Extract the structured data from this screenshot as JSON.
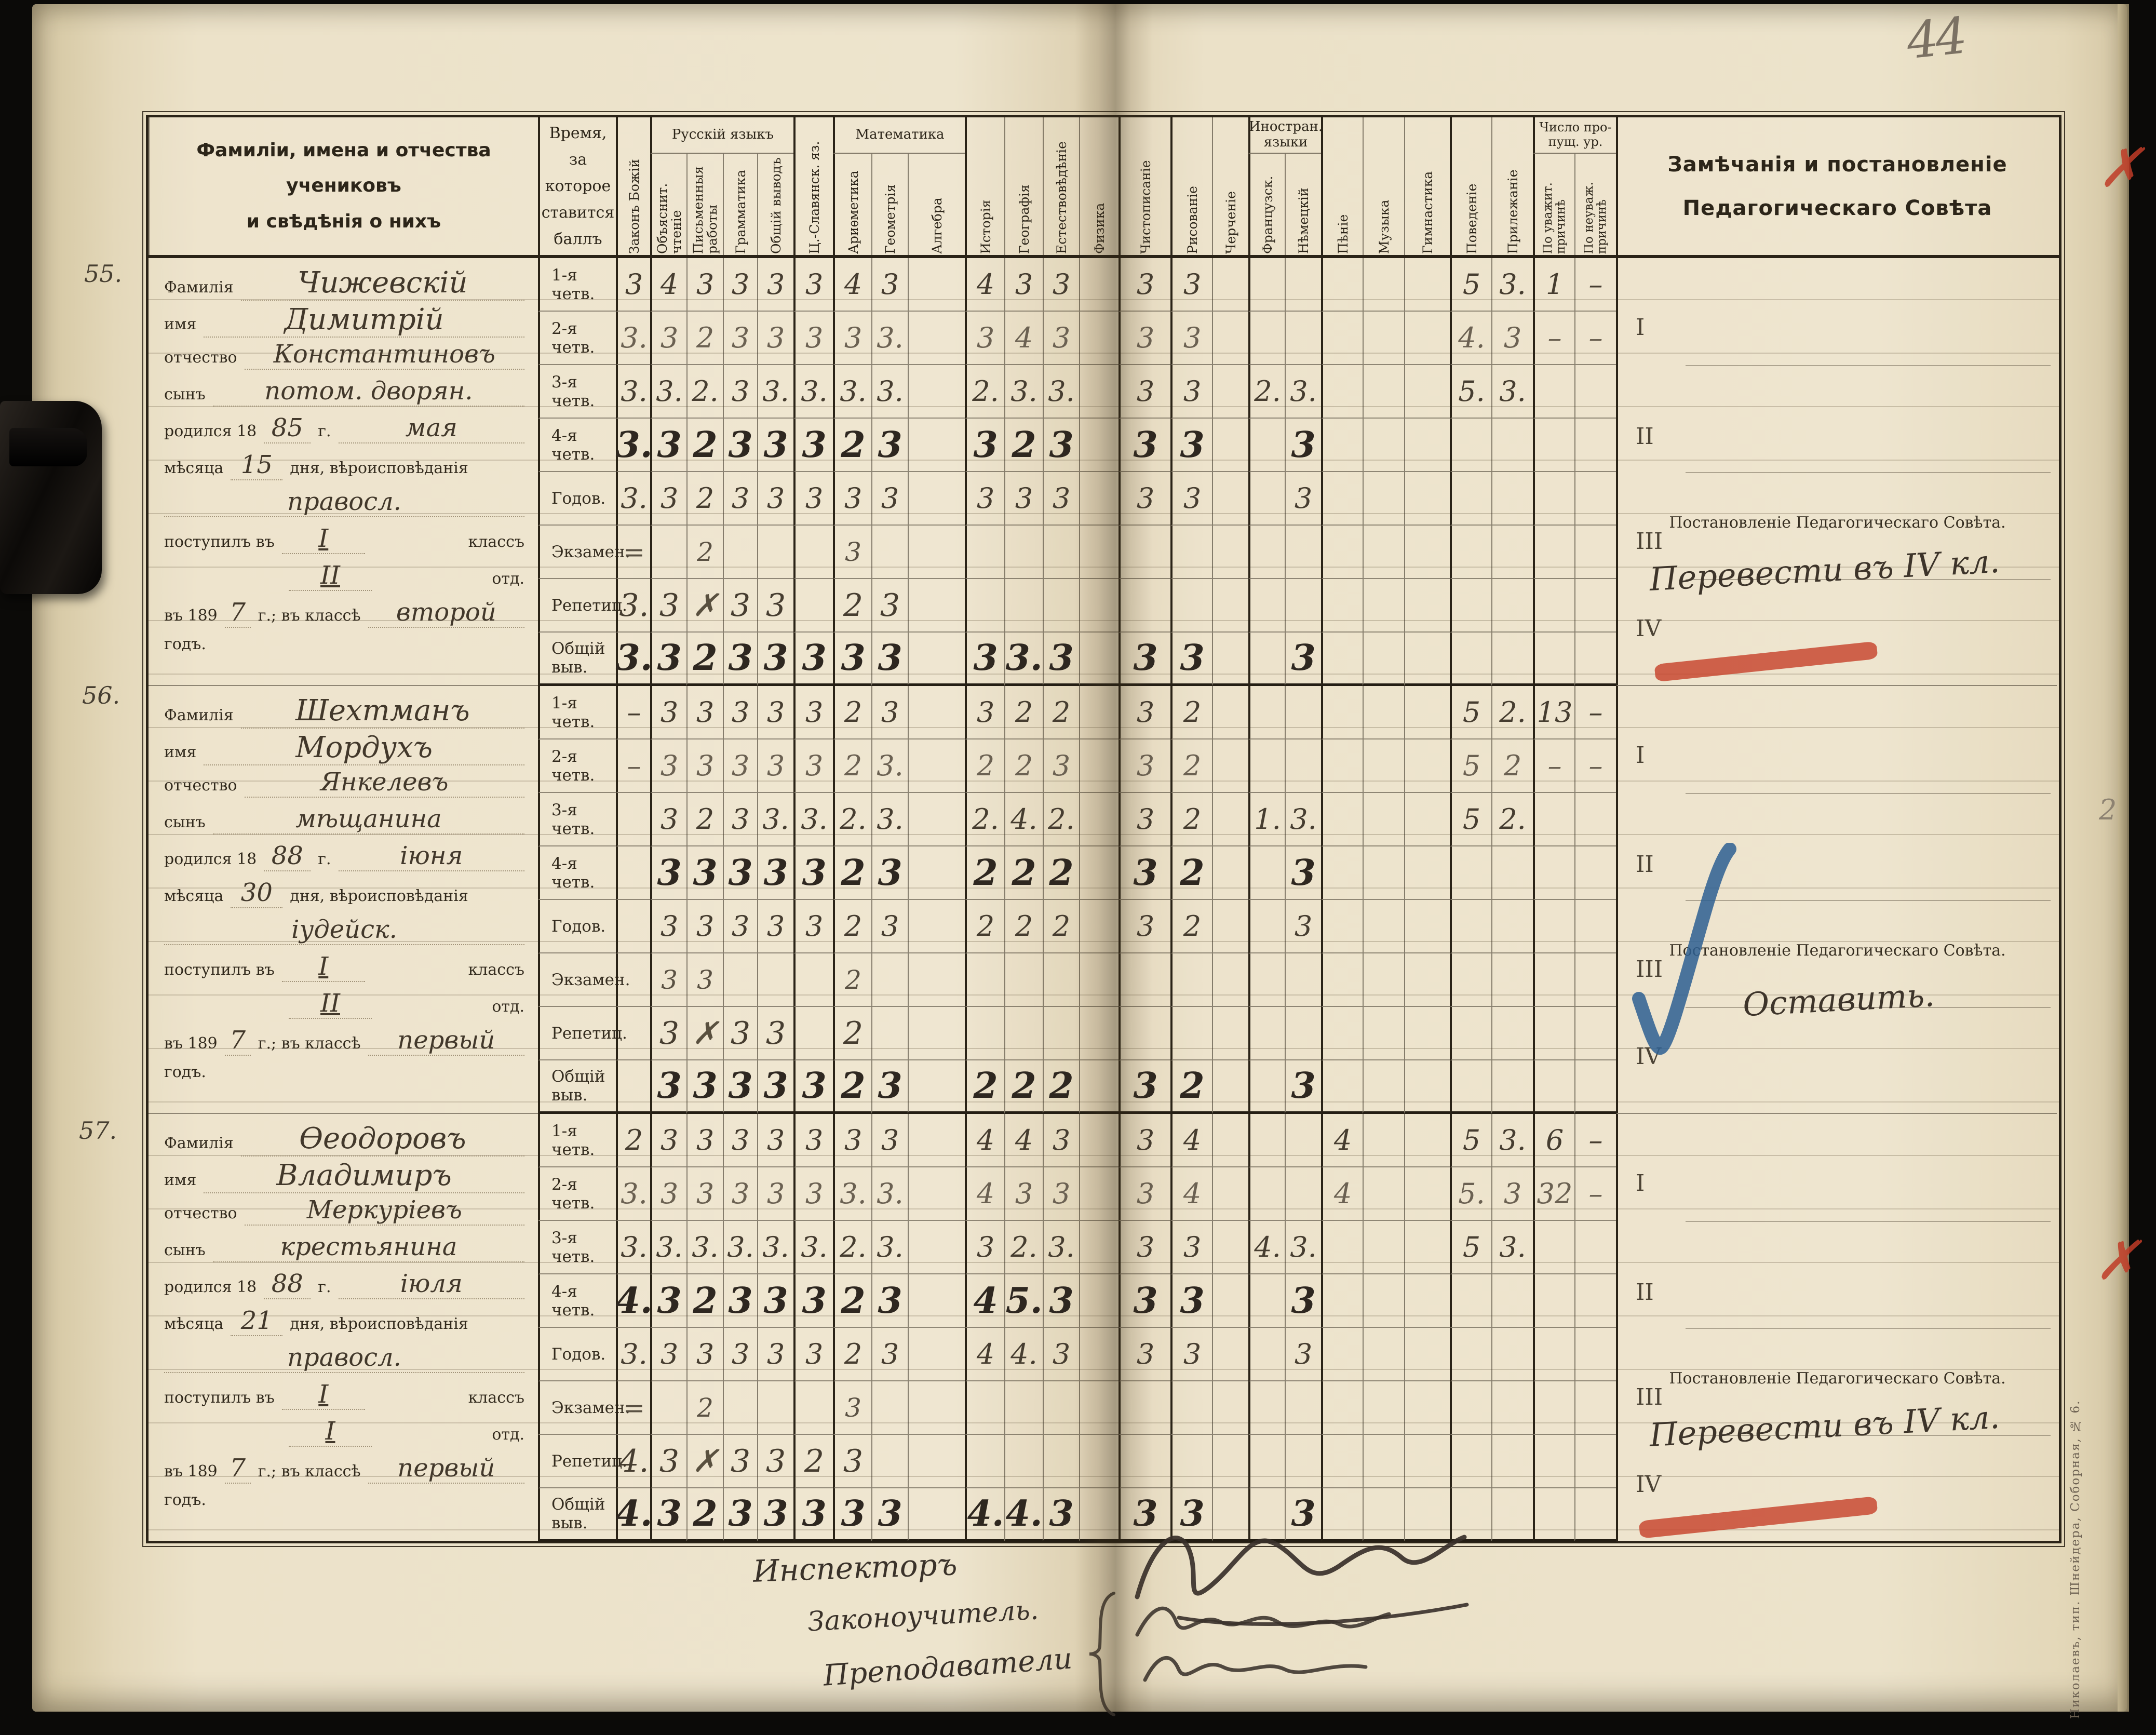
{
  "page": {
    "number": "44",
    "imprint": "Николаевъ, тип. Шнейдера, Соборная, № 6."
  },
  "header": {
    "students_col": "Фамиліи, имена и отчества\nучениковъ\nи свѣдѣнія о нихъ",
    "time_col": "Время,\nза которое\nставится\nбаллъ",
    "groups": {
      "russian": "Русскій языкъ",
      "math": "Математика",
      "foreign": "Иностран.\nязыки",
      "missed": "Число про-\nпущ. ур."
    },
    "subjects": [
      "Законъ Божій",
      "Объяснит. чтеніе",
      "Письменныя работы",
      "Грамматика",
      "Общій выводъ",
      "Ц.-Славянск. яз.",
      "Ариѳметика",
      "Геометрія",
      "Алгебра",
      "Исторія",
      "Географія",
      "Естествовѣдѣніе",
      "Физика",
      "Чистописаніе",
      "Рисованіе",
      "Черченіе",
      "Французск.",
      "Нѣмецкій",
      "Пѣніе",
      "Музыка",
      "Гимнастика",
      "Поведеніе",
      "Прилежаніе",
      "По уважит. причинѣ",
      "По неуваж. причинѣ"
    ],
    "remarks_col": "Замѣчанія и постановленіе\nПедагогическаго Совѣта"
  },
  "info_labels": {
    "surname": "Фамилія",
    "name": "имя",
    "patronymic": "отчество",
    "son_of": "сынъ",
    "born": "родился 18",
    "year_suffix": "г.",
    "month_word": "мѣсяца",
    "day_religion": "дня, вѣроисповѣданія",
    "entered": "поступилъ въ",
    "class_word": "классъ",
    "otd_word": "отд.",
    "in_year_prefix": "въ 189",
    "in_year_suffix": "г.; въ классѣ",
    "year_word": "годъ."
  },
  "quarter_marks": [
    "I",
    "II",
    "III",
    "IV"
  ],
  "resolution_label": "Постановленіе Педагогическаго Совѣта.",
  "row_labels": [
    "1-я четв.",
    "2-я четв.",
    "3-я четв.",
    "4-я четв.",
    "Годов.",
    "Экзамен.",
    "Репетиц.",
    "Общій выв."
  ],
  "students": [
    {
      "number": "55.",
      "surname": "Чижевскій",
      "name": "Димитрій",
      "patronymic": "Константиновъ",
      "son_of": "потом. дворян.",
      "birth_year": "85",
      "birth_month": "мая",
      "birth_day": "15",
      "religion": "правосл.",
      "entered_class": "I",
      "entered_otd": "II",
      "entered_year_digit": "7",
      "class_year": "второй",
      "resolution": "Перевести въ IV кл.",
      "resolution_mark": "red-underline",
      "rows": [
        {
          "label": "1-я четв.",
          "grades": [
            "3",
            "4",
            "3",
            "3",
            "3",
            "3",
            "4",
            "3",
            "",
            "4",
            "3",
            "3",
            "",
            "3",
            "3",
            "",
            "",
            "",
            "",
            "",
            "",
            "5",
            "3.",
            "1",
            "–"
          ]
        },
        {
          "label": "2-я четв.",
          "grades": [
            "3.",
            "3",
            "2",
            "3",
            "3",
            "3",
            "3",
            "3.",
            "",
            "3",
            "4",
            "3",
            "",
            "3",
            "3",
            "",
            "",
            "",
            "",
            "",
            "",
            "4.",
            "3",
            "–",
            "–"
          ]
        },
        {
          "label": "3-я четв.",
          "grades": [
            "3.",
            "3.",
            "2.",
            "3",
            "3.",
            "3.",
            "3.",
            "3.",
            "",
            "2.",
            "3.",
            "3.",
            "",
            "3",
            "3",
            "",
            "2.",
            "3.",
            "",
            "",
            "",
            "5.",
            "3.",
            "",
            ""
          ]
        },
        {
          "label": "4-я четв.",
          "grades": [
            "3.",
            "3",
            "2",
            "3",
            "3",
            "3",
            "2",
            "3",
            "",
            "3",
            "2",
            "3",
            "",
            "3",
            "3",
            "",
            "",
            "3",
            "",
            "",
            "",
            "",
            "",
            "",
            ""
          ]
        },
        {
          "label": "Годов.",
          "grades": [
            "3.",
            "3",
            "2",
            "3",
            "3",
            "3",
            "3",
            "3",
            "",
            "3",
            "3",
            "3",
            "",
            "3",
            "3",
            "",
            "",
            "3",
            "",
            "",
            "",
            "",
            "",
            "",
            ""
          ]
        },
        {
          "label": "Экзамен.",
          "grades": [
            "=",
            "",
            "2",
            "",
            "",
            "",
            "3",
            "",
            "",
            "",
            "",
            "",
            "",
            "",
            "",
            "",
            "",
            "",
            "",
            "",
            "",
            "",
            "",
            "",
            ""
          ]
        },
        {
          "label": "Репетиц.",
          "grades": [
            "3.",
            "3",
            "✗",
            "3",
            "3",
            "",
            "2",
            "3",
            "",
            "",
            "",
            "",
            "",
            "",
            "",
            "",
            "",
            "",
            "",
            "",
            "",
            "",
            "",
            "",
            ""
          ]
        },
        {
          "label": "Общій выв.",
          "grades": [
            "3.",
            "3",
            "2",
            "3",
            "3",
            "3",
            "3",
            "3",
            "",
            "3",
            "3.",
            "3",
            "",
            "3",
            "3",
            "",
            "",
            "3",
            "",
            "",
            "",
            "",
            "",
            "",
            ""
          ]
        }
      ]
    },
    {
      "number": "56.",
      "surname": "Шехтманъ",
      "name": "Мордухъ",
      "patronymic": "Янкелевъ",
      "son_of": "мѣщанина",
      "birth_year": "88",
      "birth_month": "іюня",
      "birth_day": "30",
      "religion": "іудейск.",
      "entered_class": "I",
      "entered_otd": "II",
      "entered_year_digit": "7",
      "class_year": "первый",
      "resolution": "Оставить.",
      "resolution_mark": "blue-check",
      "rows": [
        {
          "label": "1-я четв.",
          "grades": [
            "–",
            "3",
            "3",
            "3",
            "3",
            "3",
            "2",
            "3",
            "",
            "3",
            "2",
            "2",
            "",
            "3",
            "2",
            "",
            "",
            "",
            "",
            "",
            "",
            "5",
            "2.",
            "13",
            "–"
          ]
        },
        {
          "label": "2-я четв.",
          "grades": [
            "–",
            "3",
            "3",
            "3",
            "3",
            "3",
            "2",
            "3.",
            "",
            "2",
            "2",
            "3",
            "",
            "3",
            "2",
            "",
            "",
            "",
            "",
            "",
            "",
            "5",
            "2",
            "–",
            "–"
          ]
        },
        {
          "label": "3-я четв.",
          "grades": [
            "",
            "3",
            "2",
            "3",
            "3.",
            "3.",
            "2.",
            "3.",
            "",
            "2.",
            "4.",
            "2.",
            "",
            "3",
            "2",
            "",
            "1.",
            "3.",
            "",
            "",
            "",
            "5",
            "2.",
            "",
            ""
          ]
        },
        {
          "label": "4-я четв.",
          "grades": [
            "",
            "3",
            "3",
            "3",
            "3",
            "3",
            "2",
            "3",
            "",
            "2",
            "2",
            "2",
            "",
            "3",
            "2",
            "",
            "",
            "3",
            "",
            "",
            "",
            "",
            "",
            "",
            ""
          ]
        },
        {
          "label": "Годов.",
          "grades": [
            "",
            "3",
            "3",
            "3",
            "3",
            "3",
            "2",
            "3",
            "",
            "2",
            "2",
            "2",
            "",
            "3",
            "2",
            "",
            "",
            "3",
            "",
            "",
            "",
            "",
            "",
            "",
            ""
          ]
        },
        {
          "label": "Экзамен.",
          "grades": [
            "",
            "3",
            "3",
            "",
            "",
            "",
            "2",
            "",
            "",
            "",
            "",
            "",
            "",
            "",
            "",
            "",
            "",
            "",
            "",
            "",
            "",
            "",
            "",
            "",
            ""
          ]
        },
        {
          "label": "Репетиц.",
          "grades": [
            "",
            "3",
            "✗",
            "3",
            "3",
            "",
            "2",
            "",
            "",
            "",
            "",
            "",
            "",
            "",
            "",
            "",
            "",
            "",
            "",
            "",
            "",
            "",
            "",
            "",
            ""
          ]
        },
        {
          "label": "Общій выв.",
          "grades": [
            "",
            "3",
            "3",
            "3",
            "3",
            "3",
            "2",
            "3",
            "",
            "2",
            "2",
            "2",
            "",
            "3",
            "2",
            "",
            "",
            "3",
            "",
            "",
            "",
            "",
            "",
            "",
            ""
          ]
        }
      ]
    },
    {
      "number": "57.",
      "surname": "Ѳеодоровъ",
      "name": "Владимиръ",
      "patronymic": "Меркуріевъ",
      "son_of": "крестьянина",
      "birth_year": "88",
      "birth_month": "іюля",
      "birth_day": "21",
      "religion": "правосл.",
      "entered_class": "I",
      "entered_otd": "I",
      "entered_year_digit": "7",
      "class_year": "первый",
      "resolution": "Перевести въ IV кл.",
      "resolution_mark": "red-underline",
      "rows": [
        {
          "label": "1-я четв.",
          "grades": [
            "2",
            "3",
            "3",
            "3",
            "3",
            "3",
            "3",
            "3",
            "",
            "4",
            "4",
            "3",
            "",
            "3",
            "4",
            "",
            "",
            "",
            "4",
            "",
            "",
            "5",
            "3.",
            "6",
            "–"
          ]
        },
        {
          "label": "2-я четв.",
          "grades": [
            "3.",
            "3",
            "3",
            "3",
            "3",
            "3",
            "3.",
            "3.",
            "",
            "4",
            "3",
            "3",
            "",
            "3",
            "4",
            "",
            "",
            "",
            "4",
            "",
            "",
            "5.",
            "3",
            "32",
            "–"
          ]
        },
        {
          "label": "3-я четв.",
          "grades": [
            "3.",
            "3.",
            "3.",
            "3.",
            "3.",
            "3.",
            "2.",
            "3.",
            "",
            "3",
            "2.",
            "3.",
            "",
            "3",
            "3",
            "",
            "4.",
            "3.",
            "",
            "",
            "",
            "5",
            "3.",
            "",
            ""
          ]
        },
        {
          "label": "4-я четв.",
          "grades": [
            "4.",
            "3",
            "2",
            "3",
            "3",
            "3",
            "2",
            "3",
            "",
            "4",
            "5.",
            "3",
            "",
            "3",
            "3",
            "",
            "",
            "3",
            "",
            "",
            "",
            "",
            "",
            "",
            ""
          ]
        },
        {
          "label": "Годов.",
          "grades": [
            "3.",
            "3",
            "3",
            "3",
            "3",
            "3",
            "2",
            "3",
            "",
            "4",
            "4.",
            "3",
            "",
            "3",
            "3",
            "",
            "",
            "3",
            "",
            "",
            "",
            "",
            "",
            "",
            ""
          ]
        },
        {
          "label": "Экзамен.",
          "grades": [
            "=",
            "",
            "2",
            "",
            "",
            "",
            "3",
            "",
            "",
            "",
            "",
            "",
            "",
            "",
            "",
            "",
            "",
            "",
            "",
            "",
            "",
            "",
            "",
            "",
            ""
          ]
        },
        {
          "label": "Репетиц.",
          "grades": [
            "4.",
            "3",
            "✗",
            "3",
            "3",
            "2",
            "3",
            "",
            "",
            "",
            "",
            "",
            "",
            "",
            "",
            "",
            "",
            "",
            "",
            "",
            "",
            "",
            "",
            "",
            ""
          ]
        },
        {
          "label": "Общій выв.",
          "grades": [
            "4.",
            "3",
            "2",
            "3",
            "3",
            "3",
            "3",
            "3",
            "",
            "4.",
            "4.",
            "3",
            "",
            "3",
            "3",
            "",
            "",
            "3",
            "",
            "",
            "",
            "",
            "",
            "",
            ""
          ]
        }
      ]
    }
  ],
  "margin_marks": {
    "red_cross_top": "✗",
    "red_cross_bottom": "✗",
    "pencil_note": "2"
  },
  "footer": {
    "roles": [
      "Инспекторъ",
      "Законоучитель.",
      "Преподаватели"
    ]
  }
}
